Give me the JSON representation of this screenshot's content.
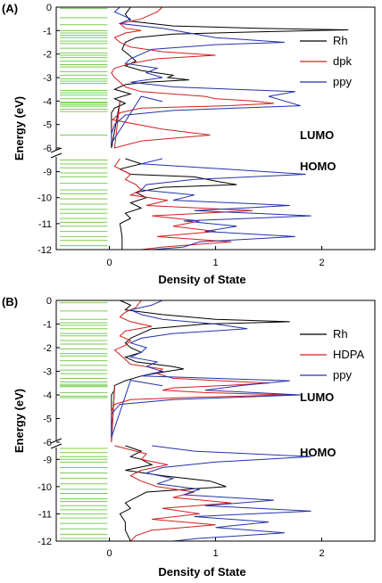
{
  "figure": {
    "panels": [
      {
        "label": "(A)",
        "ylabel": "Energy (eV)",
        "xlabel": "Density of State",
        "lumo_label": "LUMO",
        "homo_label": "HOMO",
        "legend": [
          {
            "name": "Rh",
            "color": "#000000"
          },
          {
            "name": "dpk",
            "color": "#d22020"
          },
          {
            "name": "ppy",
            "color": "#2233aa"
          }
        ]
      },
      {
        "label": "(B)",
        "ylabel": "Energy (eV)",
        "xlabel": "Density of State",
        "lumo_label": "LUMO",
        "homo_label": "HOMO",
        "legend": [
          {
            "name": "Rh",
            "color": "#000000"
          },
          {
            "name": "HDPA",
            "color": "#d22020"
          },
          {
            "name": "ppy",
            "color": "#2233aa"
          }
        ]
      }
    ]
  },
  "chart_data": [
    {
      "type": "line",
      "title": "",
      "xlabel": "Density of State",
      "ylabel": "Energy (eV)",
      "xlim": [
        -0.5,
        2.5
      ],
      "x_ticks": [
        0,
        1,
        2
      ],
      "y_break": {
        "lower": [
          -12,
          -8.5
        ],
        "upper": [
          -6,
          0
        ]
      },
      "y_ticks_upper": [
        0,
        -1,
        -2,
        -3,
        -4,
        -5,
        -6
      ],
      "y_ticks_lower": [
        -9,
        -10,
        -11,
        -12
      ],
      "grid": false,
      "legend_position": "upper-right",
      "energy_levels": [
        -0.05,
        -0.45,
        -0.75,
        -1.0,
        -1.1,
        -1.2,
        -1.3,
        -1.45,
        -1.55,
        -1.75,
        -1.95,
        -2.05,
        -2.15,
        -2.3,
        -2.45,
        -2.55,
        -2.75,
        -2.9,
        -3.05,
        -3.15,
        -3.25,
        -3.55,
        -3.65,
        -3.75,
        -3.9,
        -4.05,
        -4.15,
        -4.22,
        -4.35,
        -4.45,
        -5.45,
        -6.35,
        -8.55,
        -8.7,
        -8.85,
        -9.05,
        -9.2,
        -9.45,
        -9.7,
        -9.85,
        -10.05,
        -10.25,
        -10.45,
        -10.6,
        -10.8,
        -10.95,
        -11.1,
        -11.3,
        -11.5,
        -11.65,
        -11.85,
        -12.0
      ],
      "series": [
        {
          "name": "Rh",
          "color": "#000000",
          "y": [
            0,
            -0.3,
            -0.6,
            -0.8,
            -0.9,
            -0.97,
            -1.05,
            -1.15,
            -1.3,
            -1.5,
            -1.8,
            -2.1,
            -2.3,
            -2.5,
            -2.7,
            -2.9,
            -3.0,
            -3.1,
            -3.2,
            -3.3,
            -3.5,
            -3.7,
            -3.9,
            -4.1,
            -4.3,
            -4.5,
            -5.0,
            -5.5,
            -6.0,
            -6.3,
            -8.5,
            -8.7,
            -8.9,
            -9.1,
            -9.2,
            -9.4,
            -9.5,
            -9.6,
            -9.8,
            -10.0,
            -10.2,
            -10.4,
            -10.6,
            -10.8,
            -11.0,
            -11.5,
            -12.0
          ],
          "x": [
            0.2,
            0.15,
            0.2,
            0.6,
            1.4,
            2.25,
            1.4,
            0.6,
            0.25,
            0.15,
            0.12,
            0.2,
            0.25,
            0.15,
            0.3,
            0.6,
            0.55,
            0.75,
            0.35,
            0.15,
            0.05,
            0.2,
            0.05,
            0.15,
            0.05,
            0.02,
            0.02,
            0.02,
            0.02,
            0.1,
            0.15,
            0.3,
            0.1,
            0.2,
            0.8,
            1.05,
            1.2,
            0.5,
            0.25,
            0.35,
            0.2,
            0.3,
            0.15,
            0.2,
            0.1,
            0.12,
            0.12
          ]
        },
        {
          "name": "dpk",
          "color": "#d22020",
          "y": [
            0,
            -0.2,
            -0.5,
            -0.7,
            -0.9,
            -1.0,
            -1.1,
            -1.3,
            -1.5,
            -1.7,
            -1.9,
            -2.05,
            -2.2,
            -2.4,
            -2.6,
            -2.8,
            -3.0,
            -3.2,
            -3.4,
            -3.6,
            -3.8,
            -3.9,
            -4.0,
            -4.1,
            -4.2,
            -4.3,
            -4.5,
            -4.8,
            -5.2,
            -5.45,
            -5.7,
            -6.0,
            -6.3,
            -8.5,
            -8.8,
            -9.1,
            -9.3,
            -9.5,
            -9.7,
            -9.9,
            -10.1,
            -10.3,
            -10.5,
            -10.7,
            -10.9,
            -11.1,
            -11.3,
            -11.5,
            -11.7,
            -11.9,
            -12.0
          ],
          "x": [
            0.5,
            0.45,
            0.3,
            0.1,
            0.15,
            0.3,
            0.15,
            0.05,
            0.1,
            0.2,
            0.5,
            1.0,
            0.45,
            0.2,
            0.05,
            0.02,
            0.05,
            0.1,
            0.15,
            0.3,
            0.9,
            1.0,
            1.35,
            1.55,
            1.1,
            0.3,
            0.1,
            0.03,
            0.5,
            0.95,
            0.3,
            0.05,
            0.1,
            0.1,
            0.05,
            0.2,
            0.15,
            0.25,
            0.3,
            0.2,
            0.55,
            0.35,
            1.35,
            0.4,
            0.85,
            0.6,
            1.0,
            0.45,
            1.15,
            0.5,
            0.3
          ]
        },
        {
          "name": "ppy",
          "color": "#2233aa",
          "y": [
            0,
            -0.2,
            -0.5,
            -0.7,
            -0.9,
            -1.1,
            -1.3,
            -1.5,
            -1.6,
            -1.8,
            -2.0,
            -2.2,
            -2.4,
            -2.6,
            -2.8,
            -3.0,
            -3.2,
            -3.4,
            -3.6,
            -3.8,
            -4.0,
            -4.2,
            -4.4,
            -4.6,
            -5.0,
            -5.4,
            -5.8,
            -6.1,
            -6.3,
            -8.5,
            -8.7,
            -8.9,
            -9.1,
            -9.3,
            -9.5,
            -9.7,
            -9.9,
            -10.1,
            -10.3,
            -10.5,
            -10.7,
            -10.9,
            -11.1,
            -11.3,
            -11.5,
            -11.7,
            -11.9,
            -12.0
          ],
          "x": [
            0.1,
            0.05,
            0.2,
            0.1,
            0.5,
            0.75,
            1.0,
            1.65,
            1.0,
            0.4,
            0.3,
            0.2,
            0.15,
            0.45,
            0.35,
            0.5,
            0.2,
            0.6,
            1.75,
            1.5,
            1.65,
            1.8,
            0.6,
            0.15,
            0.05,
            0.02,
            0.02,
            0.3,
            0.5,
            0.5,
            0.3,
            1.1,
            1.85,
            0.8,
            0.35,
            0.3,
            0.8,
            0.6,
            1.7,
            0.8,
            1.9,
            0.7,
            1.2,
            0.9,
            1.75,
            0.85,
            0.7,
            0.4
          ]
        }
      ]
    },
    {
      "type": "line",
      "title": "",
      "xlabel": "Density of State",
      "ylabel": "Energy (eV)",
      "xlim": [
        -0.5,
        2.5
      ],
      "x_ticks": [
        0,
        1,
        2
      ],
      "y_break": {
        "lower": [
          -12,
          -8.5
        ],
        "upper": [
          -6,
          0
        ]
      },
      "y_ticks_upper": [
        0,
        -1,
        -2,
        -3,
        -4,
        -5,
        -6
      ],
      "y_ticks_lower": [
        -9,
        -10,
        -11,
        -12
      ],
      "grid": false,
      "legend_position": "upper-right",
      "energy_levels": [
        -0.1,
        -0.45,
        -0.8,
        -0.95,
        -1.05,
        -1.2,
        -1.4,
        -1.5,
        -1.7,
        -1.85,
        -2.05,
        -2.25,
        -2.35,
        -2.55,
        -2.75,
        -2.95,
        -3.1,
        -3.3,
        -3.45,
        -3.55,
        -3.65,
        -3.9,
        -4.05,
        -4.12,
        -6.3,
        -8.6,
        -8.75,
        -8.9,
        -9.0,
        -9.1,
        -9.3,
        -9.5,
        -9.7,
        -9.9,
        -10.1,
        -10.25,
        -10.45,
        -10.55,
        -10.7,
        -10.85,
        -11.0,
        -11.15,
        -11.35,
        -11.55,
        -11.75,
        -11.9
      ],
      "series": [
        {
          "name": "Rh",
          "color": "#000000",
          "y": [
            0,
            -0.2,
            -0.4,
            -0.6,
            -0.8,
            -0.9,
            -1.0,
            -1.2,
            -1.4,
            -1.6,
            -1.8,
            -2.0,
            -2.2,
            -2.4,
            -2.6,
            -2.8,
            -2.9,
            -3.0,
            -3.2,
            -3.4,
            -3.6,
            -3.8,
            -4.0,
            -4.3,
            -4.6,
            -5.0,
            -5.5,
            -6.0,
            -6.3,
            -8.5,
            -8.7,
            -8.9,
            -9.0,
            -9.2,
            -9.4,
            -9.6,
            -9.8,
            -10.0,
            -10.2,
            -10.4,
            -10.6,
            -10.8,
            -11.0,
            -11.3,
            -11.6,
            -12.0
          ],
          "x": [
            0.1,
            0.2,
            0.15,
            0.5,
            1.0,
            1.7,
            0.9,
            0.4,
            0.3,
            0.2,
            0.15,
            0.2,
            0.3,
            0.15,
            0.25,
            0.6,
            0.7,
            0.55,
            0.3,
            0.15,
            0.05,
            0.05,
            0.02,
            0.02,
            0.02,
            0.02,
            0.02,
            0.02,
            0.05,
            0.15,
            0.3,
            0.2,
            0.3,
            0.4,
            0.15,
            0.5,
            0.95,
            1.1,
            0.35,
            0.25,
            0.15,
            0.2,
            0.1,
            0.15,
            0.15,
            0.2
          ]
        },
        {
          "name": "HDPA",
          "color": "#d22020",
          "y": [
            0,
            -0.3,
            -0.5,
            -0.7,
            -0.9,
            -1.1,
            -1.3,
            -1.5,
            -1.7,
            -1.9,
            -2.1,
            -2.3,
            -2.5,
            -2.7,
            -2.9,
            -3.1,
            -3.3,
            -3.5,
            -3.6,
            -3.7,
            -3.8,
            -3.9,
            -4.0,
            -4.1,
            -4.2,
            -4.4,
            -4.7,
            -5.2,
            -6.0,
            -6.3,
            -8.5,
            -8.8,
            -9.0,
            -9.2,
            -9.4,
            -9.6,
            -9.8,
            -10.0,
            -10.2,
            -10.4,
            -10.6,
            -10.8,
            -11.0,
            -11.2,
            -11.4,
            -11.6,
            -11.8,
            -12.0
          ],
          "x": [
            0.3,
            0.25,
            0.15,
            0.1,
            0.2,
            0.4,
            0.15,
            0.1,
            0.2,
            0.15,
            0.05,
            0.1,
            0.15,
            0.2,
            0.5,
            0.45,
            0.6,
            1.5,
            1.1,
            0.6,
            0.5,
            0.9,
            1.7,
            0.8,
            0.2,
            0.05,
            0.02,
            0.02,
            0.02,
            0.05,
            0.05,
            0.35,
            0.3,
            0.55,
            0.3,
            0.2,
            0.3,
            0.45,
            0.8,
            0.6,
            1.15,
            0.5,
            0.85,
            0.4,
            1.0,
            0.4,
            0.25,
            0.2
          ]
        },
        {
          "name": "ppy",
          "color": "#2233aa",
          "y": [
            0,
            -0.2,
            -0.4,
            -0.6,
            -0.8,
            -1.0,
            -1.2,
            -1.4,
            -1.6,
            -1.8,
            -2.0,
            -2.2,
            -2.4,
            -2.6,
            -2.8,
            -3.0,
            -3.2,
            -3.4,
            -3.6,
            -3.8,
            -4.0,
            -4.2,
            -4.4,
            -4.8,
            -5.2,
            -5.8,
            -6.1,
            -6.3,
            -8.5,
            -8.7,
            -8.9,
            -9.1,
            -9.3,
            -9.5,
            -9.7,
            -9.9,
            -10.1,
            -10.3,
            -10.5,
            -10.7,
            -10.9,
            -11.1,
            -11.3,
            -11.5,
            -11.7,
            -11.9,
            -12.0
          ],
          "x": [
            0.5,
            0.4,
            0.2,
            0.3,
            0.5,
            1.0,
            1.3,
            0.6,
            0.3,
            0.2,
            0.35,
            0.3,
            0.2,
            0.45,
            0.35,
            0.5,
            0.3,
            1.7,
            1.25,
            0.9,
            1.8,
            0.6,
            0.1,
            0.02,
            0.02,
            0.02,
            0.2,
            0.5,
            0.4,
            0.8,
            1.9,
            1.0,
            0.5,
            0.35,
            0.6,
            0.45,
            0.85,
            0.7,
            1.55,
            0.9,
            1.9,
            0.8,
            1.5,
            1.0,
            1.65,
            0.85,
            0.6
          ]
        }
      ]
    }
  ]
}
